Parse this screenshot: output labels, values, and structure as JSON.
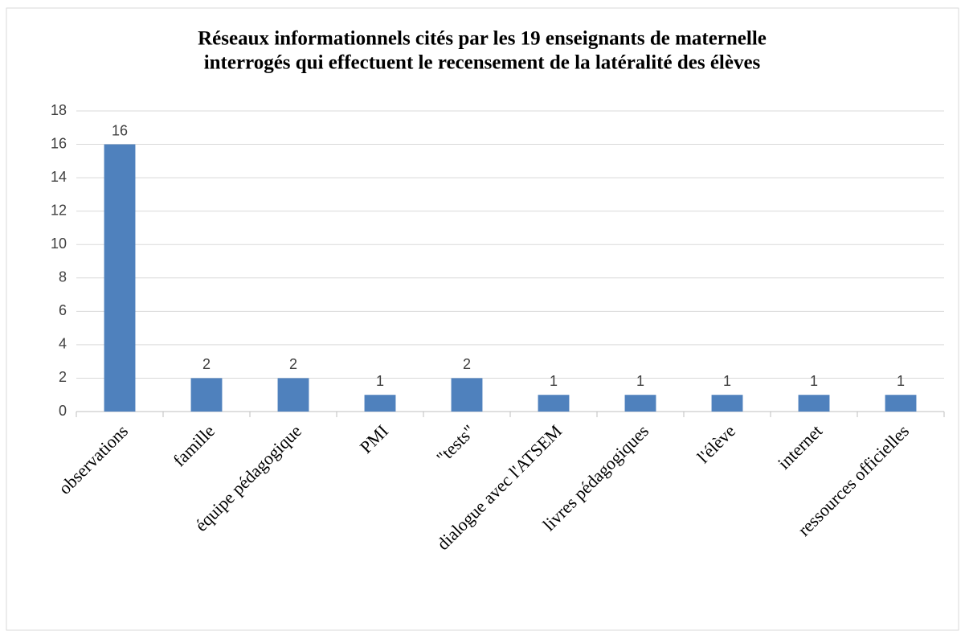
{
  "chart_data": {
    "type": "bar",
    "title": [
      "Réseaux informationnels cités par les 19 enseignants de maternelle",
      "interrogés qui effectuent le recensement de la latéralité des élèves"
    ],
    "categories": [
      "observations",
      "famille",
      "équipe pédagogique",
      "PMI",
      "\"tests\"",
      "dialogue avec l'ATSEM",
      "livres pédagogiques",
      "l'élève",
      "internet",
      "ressources officielles"
    ],
    "values": [
      16,
      2,
      2,
      1,
      2,
      1,
      1,
      1,
      1,
      1
    ],
    "color": "#4f81bd",
    "ylim": [
      0,
      18
    ],
    "yticks": [
      0,
      2,
      4,
      6,
      8,
      10,
      12,
      14,
      16,
      18
    ],
    "grid": true
  }
}
